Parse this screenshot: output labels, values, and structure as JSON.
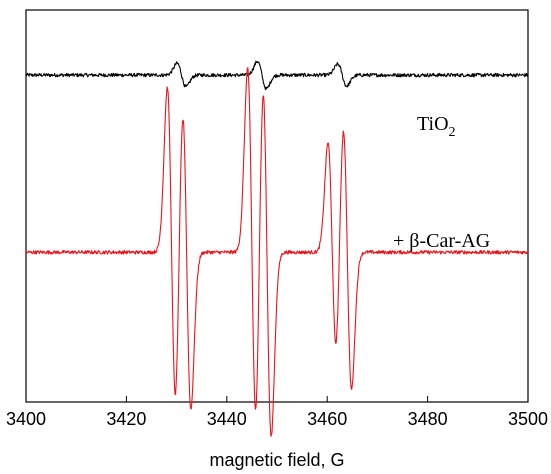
{
  "chart_data": {
    "type": "line",
    "title": "",
    "xlabel": "magnetic field, G",
    "ylabel": "",
    "xlim": [
      3400,
      3500
    ],
    "ylim": [
      0,
      1
    ],
    "grid": false,
    "x_ticks": [
      3400,
      3420,
      3440,
      3460,
      3480,
      3500
    ],
    "x_tick_labels": [
      "3400",
      "3420",
      "3440",
      "3460",
      "3480",
      "3500"
    ],
    "annotations": {
      "tio2_main": "TiO",
      "tio2_sub": "2",
      "carotenoid": "+ β-Car-AG"
    },
    "series": [
      {
        "color": "#000000",
        "baseline": 0.834,
        "noise": 0.0045,
        "features": [
          {
            "center": 3431,
            "amplitude": 0.03,
            "width": 0.9
          },
          {
            "center": 3447,
            "amplitude": 0.035,
            "width": 0.9
          },
          {
            "center": 3463,
            "amplitude": 0.028,
            "width": 0.9
          }
        ]
      },
      {
        "color": "#e8141b",
        "baseline": 0.382,
        "noise": 0.0045,
        "features": [
          {
            "center": 3429,
            "amplitude": 0.42,
            "width": 0.85
          },
          {
            "center": 3432,
            "amplitude": 0.4,
            "width": 0.85
          },
          {
            "center": 3445,
            "amplitude": 0.47,
            "width": 0.85
          },
          {
            "center": 3448,
            "amplitude": 0.47,
            "width": 0.85
          },
          {
            "center": 3461,
            "amplitude": 0.28,
            "width": 0.85
          },
          {
            "center": 3464,
            "amplitude": 0.35,
            "width": 0.85
          }
        ]
      }
    ]
  }
}
